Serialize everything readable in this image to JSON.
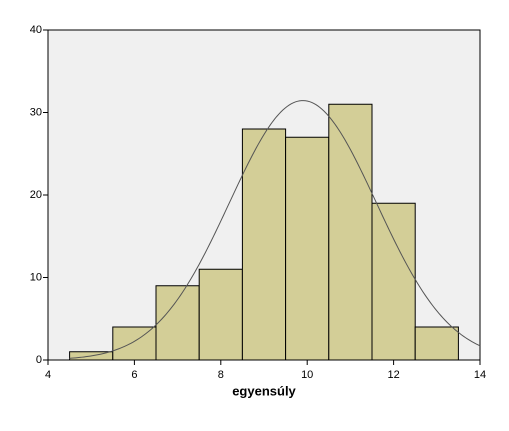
{
  "chart_data": {
    "type": "histogram",
    "x_label": "egyensúly",
    "bins": [
      4.5,
      5.5,
      6.5,
      7.5,
      8.5,
      9.5,
      10.5,
      11.5,
      12.5,
      13.5
    ],
    "values": [
      1,
      4,
      9,
      11,
      28,
      27,
      31,
      19,
      4
    ],
    "color": "#d3ce97",
    "xlim": [
      4,
      14
    ],
    "xticks": [
      4,
      6,
      8,
      10,
      12,
      14
    ],
    "ylim": [
      0,
      40
    ],
    "yticks": [
      0,
      10,
      20,
      30,
      40
    ],
    "normal_curve": {
      "mean": 9.9,
      "std": 1.7,
      "color": "#555555"
    }
  }
}
